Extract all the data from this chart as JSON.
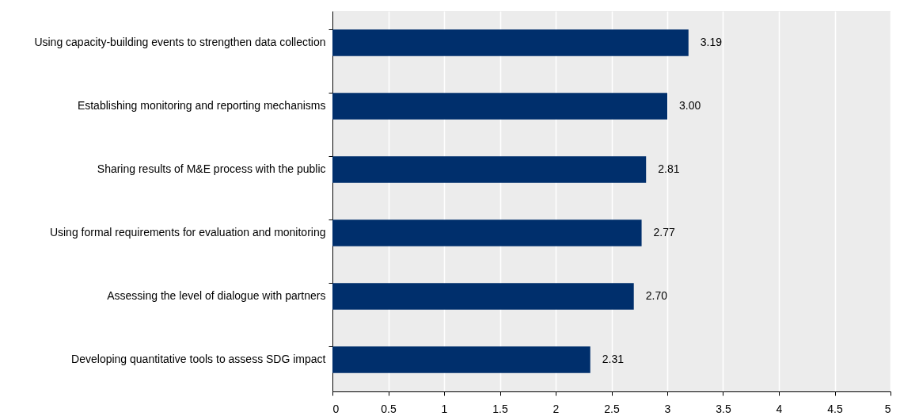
{
  "chart_data": {
    "type": "bar",
    "orientation": "horizontal",
    "categories": [
      "Using capacity-building events to strengthen data collection",
      "Establishing monitoring and reporting mechanisms",
      "Sharing results of M&E process with the public",
      "Using formal requirements for evaluation and monitoring",
      "Assessing the level of dialogue with partners",
      "Developing quantitative tools to assess SDG impact"
    ],
    "values": [
      3.19,
      3.0,
      2.81,
      2.77,
      2.7,
      2.31
    ],
    "value_labels": [
      "3.19",
      "3.00",
      "2.81",
      "2.77",
      "2.70",
      "2.31"
    ],
    "color": "#002f6c",
    "xlim": [
      0,
      5
    ],
    "xticks": [
      0,
      0.5,
      1,
      1.5,
      2,
      2.5,
      3,
      3.5,
      4,
      4.5,
      5
    ],
    "grid": "x"
  }
}
